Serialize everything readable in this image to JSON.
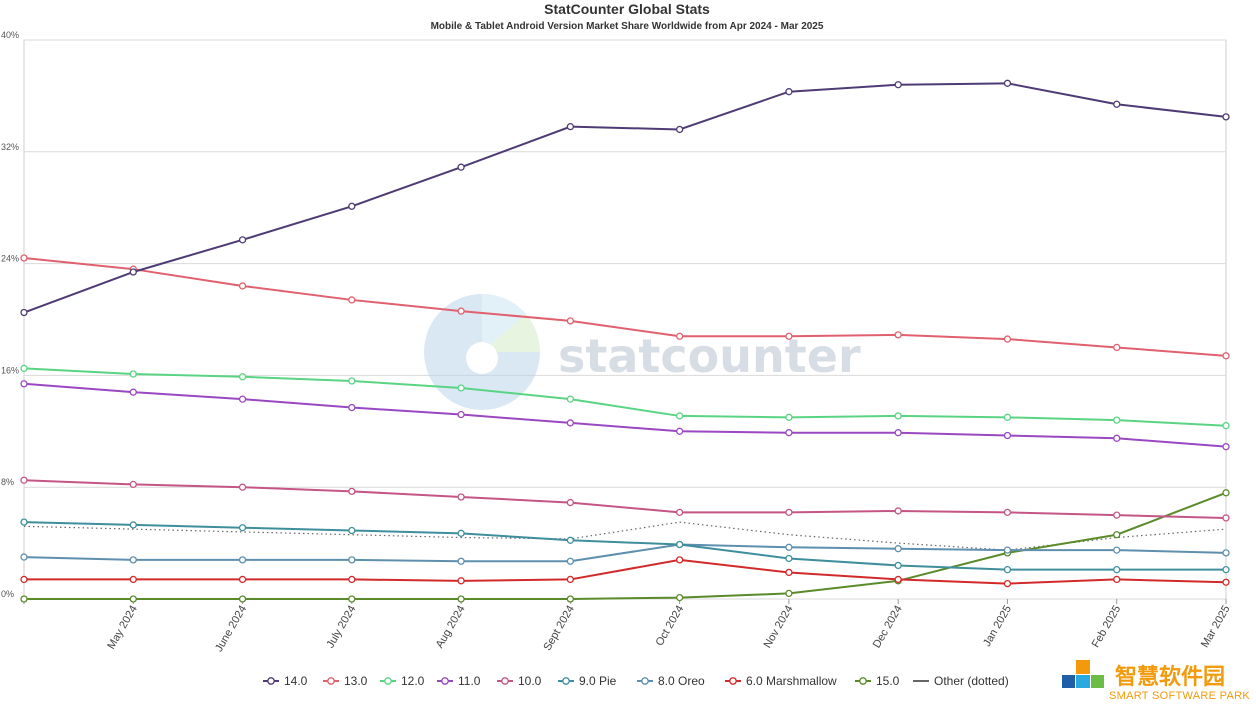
{
  "chart_data": {
    "type": "line",
    "title": "StatCounter Global Stats",
    "subtitle": "Mobile & Tablet Android Version Market Share Worldwide from Apr 2024 - Mar 2025",
    "x": [
      "Apr 2024",
      "May 2024",
      "June 2024",
      "July 2024",
      "Aug 2024",
      "Sept 2024",
      "Oct 2024",
      "Nov 2024",
      "Dec 2024",
      "Jan 2025",
      "Feb 2025",
      "Mar 2025"
    ],
    "x_tick_labels": [
      "",
      "May 2024",
      "June 2024",
      "July 2024",
      "Aug 2024",
      "Sept 2024",
      "Oct 2024",
      "Nov 2024",
      "Dec 2024",
      "Jan 2025",
      "Feb 2025",
      "Mar 2025"
    ],
    "ylim": [
      0,
      40
    ],
    "y_ticks": [
      0,
      8,
      16,
      24,
      32,
      40
    ],
    "y_tick_labels": [
      "0%",
      "8%",
      "16%",
      "24%",
      "32%",
      "40%"
    ],
    "grid": true,
    "legend_position": "bottom",
    "series": [
      {
        "name": "14.0",
        "color": "#4e3b75",
        "dotted": false,
        "values": [
          20.5,
          23.4,
          25.7,
          28.1,
          30.9,
          33.8,
          33.6,
          36.3,
          36.8,
          36.9,
          35.4,
          34.5
        ]
      },
      {
        "name": "13.0",
        "color": "#e0606e",
        "dotted": false,
        "values": [
          24.4,
          23.6,
          22.4,
          21.4,
          20.6,
          19.9,
          18.8,
          18.8,
          18.9,
          18.6,
          18.0,
          17.4
        ]
      },
      {
        "name": "12.0",
        "color": "#5ad483",
        "dotted": false,
        "values": [
          16.5,
          16.1,
          15.9,
          15.6,
          15.1,
          14.3,
          13.1,
          13.0,
          13.1,
          13.0,
          12.8,
          12.4
        ]
      },
      {
        "name": "11.0",
        "color": "#9a48c2",
        "dotted": false,
        "values": [
          15.4,
          14.8,
          14.3,
          13.7,
          13.2,
          12.6,
          12.0,
          11.9,
          11.9,
          11.7,
          11.5,
          10.9
        ]
      },
      {
        "name": "10.0",
        "color": "#c45585",
        "dotted": false,
        "values": [
          8.5,
          8.2,
          8.0,
          7.7,
          7.3,
          6.9,
          6.2,
          6.2,
          6.3,
          6.2,
          6.0,
          5.8
        ]
      },
      {
        "name": "9.0 Pie",
        "color": "#3f8e9c",
        "dotted": false,
        "values": [
          5.5,
          5.3,
          5.1,
          4.9,
          4.7,
          4.2,
          3.9,
          2.9,
          2.4,
          2.1,
          2.1,
          2.1
        ]
      },
      {
        "name": "8.0 Oreo",
        "color": "#5f8fae",
        "dotted": false,
        "values": [
          3.0,
          2.8,
          2.8,
          2.8,
          2.7,
          2.7,
          3.9,
          3.7,
          3.6,
          3.5,
          3.5,
          3.3
        ]
      },
      {
        "name": "6.0 Marshmallow",
        "color": "#d22a2a",
        "dotted": false,
        "values": [
          1.4,
          1.4,
          1.4,
          1.4,
          1.3,
          1.4,
          2.8,
          1.9,
          1.4,
          1.1,
          1.4,
          1.2
        ]
      },
      {
        "name": "15.0",
        "color": "#5a8a2a",
        "dotted": false,
        "values": [
          0.0,
          0.0,
          0.0,
          0.0,
          0.0,
          0.0,
          0.1,
          0.4,
          1.3,
          3.3,
          4.6,
          7.6
        ]
      },
      {
        "name": "Other (dotted)",
        "color": "#666666",
        "dotted": true,
        "values": [
          5.2,
          5.0,
          4.8,
          4.6,
          4.4,
          4.3,
          5.5,
          4.6,
          4.0,
          3.5,
          4.4,
          5.0
        ]
      }
    ]
  },
  "watermark": {
    "text": "statcounter"
  },
  "brand": {
    "chinese": "智慧软件园",
    "english": "SMART SOFTWARE PARK"
  }
}
